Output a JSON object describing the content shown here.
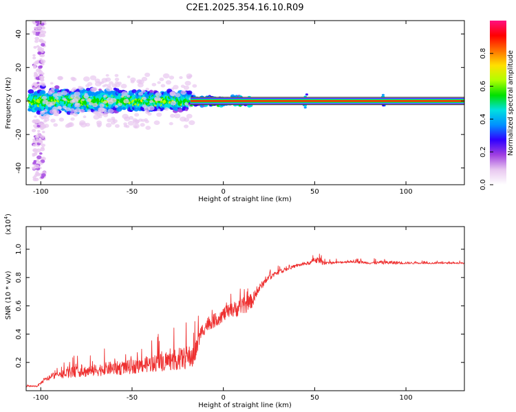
{
  "title": "C2E1.2025.354.16.10.R09",
  "chart_data": [
    {
      "type": "heatmap",
      "title": "",
      "xlabel": "Height of straight line (km)",
      "ylabel": "Frequency (Hz)",
      "xlim": [
        -108,
        132
      ],
      "ylim": [
        -50,
        48
      ],
      "xticks": [
        -100,
        -50,
        0,
        50,
        100
      ],
      "xtick_labels": [
        "-100",
        "-50",
        "0",
        "50",
        "100"
      ],
      "yticks": [
        -40,
        -20,
        0,
        20,
        40
      ],
      "ytick_labels": [
        "-40",
        "-20",
        "0",
        "20",
        "40"
      ],
      "dominant_frequency_hz": 0,
      "colorbar": {
        "label": "Normalized spectral amplitude",
        "range": [
          0,
          1
        ],
        "ticks": [
          0.0,
          0.2,
          0.4,
          0.6,
          0.8
        ],
        "tick_labels": [
          "0.0",
          "0.2",
          "0.4",
          "0.6",
          "0.8"
        ],
        "colors": [
          "#ffffff",
          "#e8c8f0",
          "#a040e0",
          "#3000ff",
          "#0090ff",
          "#00e0e0",
          "#00e000",
          "#b0ff00",
          "#ffe000",
          "#ff7000",
          "#ff0000",
          "#ff1080"
        ]
      }
    },
    {
      "type": "line",
      "title": "",
      "xlabel": "Height of straight line (km)",
      "ylabel": "SNR (10 * v/v)",
      "multiplier_label": "(x10",
      "multiplier_exponent": "4",
      "multiplier_close": ")",
      "xlim": [
        -108,
        132
      ],
      "ylim": [
        0.0,
        1.16
      ],
      "xticks": [
        -100,
        -50,
        0,
        50,
        100
      ],
      "xtick_labels": [
        "-100",
        "-50",
        "0",
        "50",
        "100"
      ],
      "yticks": [
        0.2,
        0.4,
        0.6,
        0.8,
        1.0
      ],
      "ytick_labels": [
        "0.2",
        "0.4",
        "0.6",
        "0.8",
        "1.0"
      ],
      "line_color": "#ee3030",
      "series": [
        {
          "name": "SNR",
          "x": [
            -108,
            -102,
            -98,
            -92,
            -86,
            -80,
            -74,
            -68,
            -62,
            -56,
            -50,
            -44,
            -38,
            -32,
            -26,
            -20,
            -16,
            -12,
            -8,
            -4,
            0,
            4,
            8,
            12,
            16,
            20,
            24,
            28,
            32,
            36,
            40,
            44,
            48,
            50,
            54,
            60,
            70,
            80,
            90,
            100,
            110,
            120,
            132
          ],
          "baseline": [
            0.03,
            0.03,
            0.07,
            0.1,
            0.11,
            0.12,
            0.12,
            0.13,
            0.14,
            0.14,
            0.15,
            0.16,
            0.17,
            0.18,
            0.19,
            0.2,
            0.21,
            0.4,
            0.46,
            0.48,
            0.52,
            0.54,
            0.56,
            0.58,
            0.62,
            0.72,
            0.78,
            0.82,
            0.84,
            0.86,
            0.88,
            0.89,
            0.9,
            0.92,
            0.9,
            0.9,
            0.91,
            0.9,
            0.9,
            0.9,
            0.9,
            0.9,
            0.9
          ],
          "spread": [
            0.02,
            0.02,
            0.05,
            0.08,
            0.12,
            0.14,
            0.15,
            0.16,
            0.17,
            0.18,
            0.18,
            0.2,
            0.22,
            0.24,
            0.26,
            0.3,
            0.3,
            0.18,
            0.18,
            0.18,
            0.18,
            0.2,
            0.22,
            0.22,
            0.18,
            0.1,
            0.07,
            0.06,
            0.05,
            0.04,
            0.04,
            0.04,
            0.05,
            0.1,
            0.06,
            0.03,
            0.03,
            0.03,
            0.05,
            0.03,
            0.02,
            0.02,
            0.02
          ]
        }
      ]
    }
  ]
}
